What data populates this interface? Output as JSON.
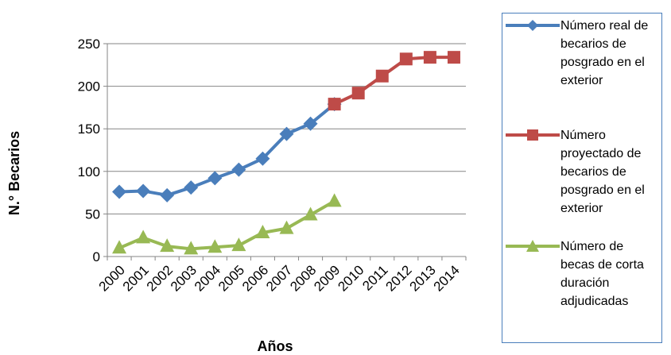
{
  "chart_data": {
    "type": "line",
    "xlabel": "Años",
    "ylabel": "N.° Becarios",
    "ylim": [
      0,
      250
    ],
    "yticks": [
      0,
      50,
      100,
      150,
      200,
      250
    ],
    "categories": [
      "2000",
      "2001",
      "2002",
      "2003",
      "2004",
      "2005",
      "2006",
      "2007",
      "2008",
      "2009",
      "2010",
      "2011",
      "2012",
      "2013",
      "2014"
    ],
    "grid": true,
    "legend_position": "right",
    "series": [
      {
        "name": "Número real de becarios de posgrado en el exterior",
        "color": "#4a7ebb",
        "marker": "diamond",
        "values": [
          76,
          77,
          72,
          81,
          92,
          102,
          115,
          144,
          156,
          179,
          null,
          null,
          null,
          null,
          null
        ]
      },
      {
        "name": "Número proyectado de becarios de posgrado en el exterior",
        "color": "#be4b48",
        "marker": "square",
        "values": [
          null,
          null,
          null,
          null,
          null,
          null,
          null,
          null,
          null,
          179,
          192,
          212,
          232,
          234,
          234
        ]
      },
      {
        "name": "Número de becas de corta duración adjudicadas",
        "color": "#98b954",
        "marker": "triangle",
        "values": [
          10,
          22,
          12,
          9,
          11,
          13,
          28,
          33,
          49,
          65,
          null,
          null,
          null,
          null,
          null
        ]
      }
    ]
  }
}
